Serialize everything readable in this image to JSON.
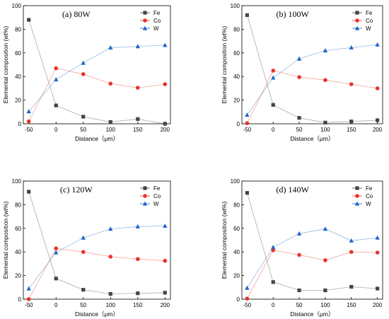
{
  "chart_data": [
    {
      "type": "line",
      "title": "(a)  80W",
      "xlabel": "Distance（μm）",
      "ylabel": "Elemental composition (wt%)",
      "x": [
        -50,
        0,
        50,
        100,
        150,
        200
      ],
      "xticks": [
        "-50",
        "0",
        "50",
        "100",
        "150",
        "200"
      ],
      "xlim": [
        -60,
        210
      ],
      "ylim": [
        0,
        100
      ],
      "yticks": [
        "0",
        "20",
        "40",
        "60",
        "80",
        "100"
      ],
      "legend_position": "top-right",
      "series": [
        {
          "name": "Fe",
          "color": "#444444",
          "marker": "square",
          "values": [
            88,
            15.5,
            6,
            1.5,
            4,
            0
          ]
        },
        {
          "name": "Co",
          "color": "#e8332a",
          "marker": "circle",
          "values": [
            2,
            47,
            42,
            34,
            30.5,
            33.5
          ]
        },
        {
          "name": "W",
          "color": "#1e66c8",
          "marker": "triangle",
          "values": [
            10.5,
            37.5,
            51.5,
            64.5,
            65.5,
            66.5
          ]
        }
      ]
    },
    {
      "type": "line",
      "title": "(b)  100W",
      "xlabel": "Distance（μm）",
      "ylabel": "Elemental composition (wt%)",
      "x": [
        -50,
        0,
        50,
        100,
        150,
        200
      ],
      "xticks": [
        "-50",
        "0",
        "50",
        "100",
        "150",
        "200"
      ],
      "xlim": [
        -60,
        210
      ],
      "ylim": [
        0,
        100
      ],
      "yticks": [
        "0",
        "20",
        "40",
        "60",
        "80",
        "100"
      ],
      "legend_position": "top-right",
      "series": [
        {
          "name": "Fe",
          "color": "#444444",
          "marker": "square",
          "values": [
            92,
            16,
            5,
            1,
            2,
            3
          ]
        },
        {
          "name": "Co",
          "color": "#e8332a",
          "marker": "circle",
          "values": [
            0.5,
            45,
            39.5,
            37,
            33.5,
            30
          ]
        },
        {
          "name": "W",
          "color": "#1e66c8",
          "marker": "triangle",
          "values": [
            7.5,
            39,
            55,
            62,
            64.5,
            67
          ]
        }
      ]
    },
    {
      "type": "line",
      "title": "(c)  120W",
      "xlabel": "Distance（μm）",
      "ylabel": "Elemental composition (wt%)",
      "x": [
        -50,
        0,
        50,
        100,
        150,
        200
      ],
      "xticks": [
        "-50",
        "0",
        "50",
        "100",
        "150",
        "200"
      ],
      "xlim": [
        -60,
        210
      ],
      "ylim": [
        0,
        100
      ],
      "yticks": [
        "0",
        "20",
        "40",
        "60",
        "80",
        "100"
      ],
      "legend_position": "top-right",
      "series": [
        {
          "name": "Fe",
          "color": "#444444",
          "marker": "square",
          "values": [
            91,
            17.5,
            8,
            4.5,
            5,
            5.5
          ]
        },
        {
          "name": "Co",
          "color": "#e8332a",
          "marker": "circle",
          "values": [
            0,
            43,
            40,
            36,
            34,
            32.5
          ]
        },
        {
          "name": "W",
          "color": "#1e66c8",
          "marker": "triangle",
          "values": [
            9,
            39.5,
            52,
            59.5,
            61.5,
            62
          ]
        }
      ]
    },
    {
      "type": "line",
      "title": "(d)  140W",
      "xlabel": "Distance（μm）",
      "ylabel": "Elemental composition (wt%)",
      "x": [
        -50,
        0,
        50,
        100,
        150,
        200
      ],
      "xticks": [
        "-50",
        "0",
        "50",
        "100",
        "150",
        "200"
      ],
      "xlim": [
        -60,
        210
      ],
      "ylim": [
        0,
        100
      ],
      "yticks": [
        "0",
        "20",
        "40",
        "60",
        "80",
        "100"
      ],
      "legend_position": "top-right",
      "series": [
        {
          "name": "Fe",
          "color": "#444444",
          "marker": "square",
          "values": [
            90,
            14.5,
            7.5,
            7.5,
            10.5,
            9
          ]
        },
        {
          "name": "Co",
          "color": "#e8332a",
          "marker": "circle",
          "values": [
            0.5,
            41.5,
            37.5,
            33,
            40,
            39.5
          ]
        },
        {
          "name": "W",
          "color": "#1e66c8",
          "marker": "triangle",
          "values": [
            9.5,
            44,
            55.5,
            59.5,
            49.5,
            52
          ]
        }
      ]
    }
  ]
}
